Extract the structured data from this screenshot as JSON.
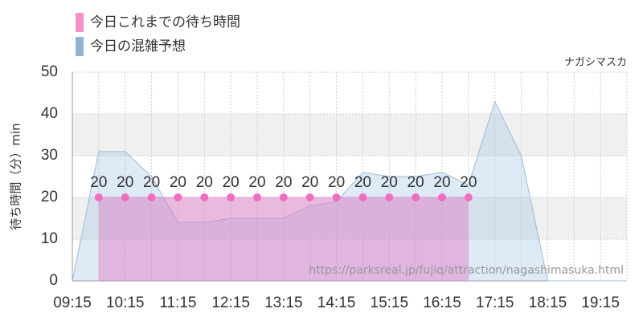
{
  "chart_data": {
    "type": "area",
    "categories": [
      "09:15",
      null,
      "10:15",
      null,
      "11:15",
      null,
      "12:15",
      null,
      "13:15",
      null,
      "14:15",
      null,
      "15:15",
      null,
      "16:15",
      null,
      "17:15",
      null,
      "18:15",
      null,
      "19:15",
      null
    ],
    "series": [
      {
        "name": "今日これまでの待ち時間",
        "color": "#f48fc8",
        "values": [
          null,
          20,
          20,
          20,
          20,
          20,
          20,
          20,
          20,
          20,
          20,
          20,
          20,
          20,
          20,
          20,
          null,
          null,
          null,
          null,
          null,
          null
        ]
      },
      {
        "name": "今日の混雑予想",
        "color": "#8fb3d3",
        "values": [
          0,
          31,
          31,
          25,
          14,
          14,
          15,
          15,
          15,
          18,
          19,
          26,
          25,
          25,
          26,
          23,
          43,
          30,
          0,
          0,
          0,
          0
        ]
      }
    ],
    "ylabel": "待ち時間（分）min",
    "annotations": [
      "ナガシマスカ",
      "https://parksreal.jp/fujiq/attraction/nagashimasuka.html"
    ],
    "ylim": [
      0,
      50
    ],
    "yticks": [
      0,
      10,
      20,
      30,
      40,
      50
    ],
    "grid": true
  }
}
